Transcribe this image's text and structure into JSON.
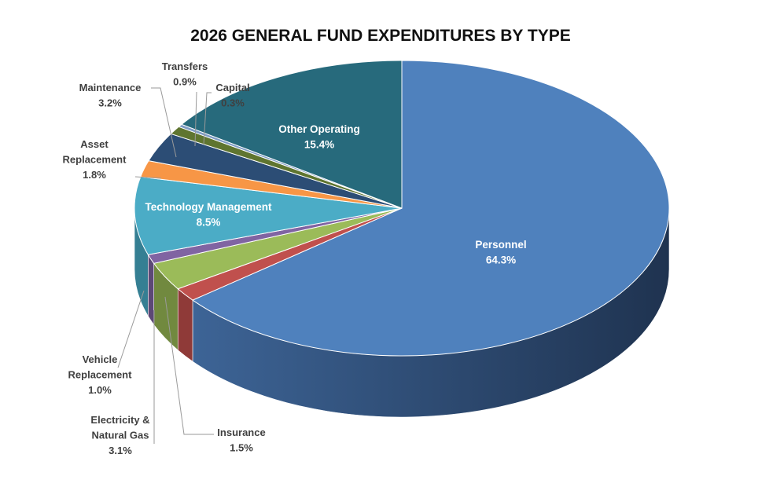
{
  "chart_data": {
    "type": "pie",
    "title": "2026 GENERAL FUND EXPENDITURES BY TYPE",
    "slices": [
      {
        "label": "Personnel",
        "display": [
          "Personnel"
        ],
        "pct_label": "64.3%",
        "value": 64.3,
        "color": "#4f81bd",
        "side_color": "#3a5f8f"
      },
      {
        "label": "Insurance",
        "display": [
          "Insurance"
        ],
        "pct_label": "1.5%",
        "value": 1.5,
        "color": "#c0504d",
        "side_color": "#8f3a38"
      },
      {
        "label": "Electricity & Natural Gas",
        "display": [
          "Electricity &",
          "Natural Gas"
        ],
        "pct_label": "3.1%",
        "value": 3.1,
        "color": "#9bbb59",
        "side_color": "#71893f"
      },
      {
        "label": "Vehicle Replacement",
        "display": [
          "Vehicle",
          "Replacement"
        ],
        "pct_label": "1.0%",
        "value": 1.0,
        "color": "#8064a2",
        "side_color": "#5c4876"
      },
      {
        "label": "Technology Management",
        "display": [
          "Technology Management"
        ],
        "pct_label": "8.5%",
        "value": 8.5,
        "color": "#4bacc6",
        "side_color": "#357f93"
      },
      {
        "label": "Asset Replacement",
        "display": [
          "Asset",
          "Replacement"
        ],
        "pct_label": "1.8%",
        "value": 1.8,
        "color": "#f79646",
        "side_color": "#b66d31"
      },
      {
        "label": "Maintenance",
        "display": [
          "Maintenance"
        ],
        "pct_label": "3.2%",
        "value": 3.2,
        "color": "#2c4d75",
        "side_color": "#1f3754"
      },
      {
        "label": "Transfers",
        "display": [
          "Transfers"
        ],
        "pct_label": "0.9%",
        "value": 0.9,
        "color": "#5f7530",
        "side_color": "#445422"
      },
      {
        "label": "Capital",
        "display": [
          "Capital"
        ],
        "pct_label": "0.3%",
        "value": 0.3,
        "color": "#7f9cc4",
        "side_color": "#5b7293"
      },
      {
        "label": "Other Operating",
        "display": [
          "Other Operating"
        ],
        "pct_label": "15.4%",
        "value": 15.4,
        "color": "#276a7c",
        "side_color": "#1b4b58"
      }
    ]
  }
}
